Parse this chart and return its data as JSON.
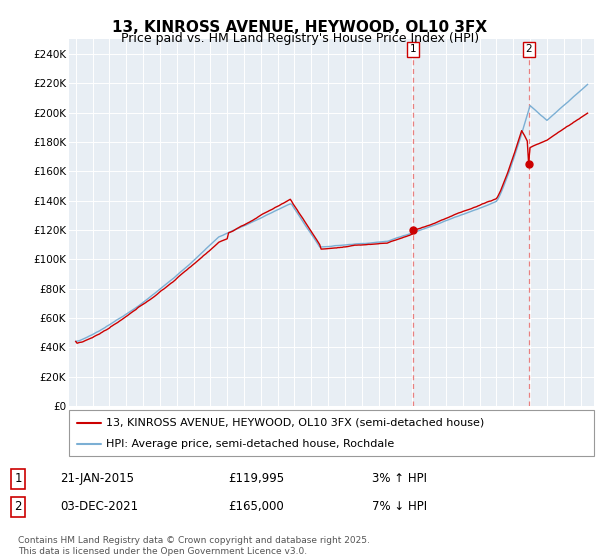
{
  "title": "13, KINROSS AVENUE, HEYWOOD, OL10 3FX",
  "subtitle": "Price paid vs. HM Land Registry's House Price Index (HPI)",
  "legend_line1": "13, KINROSS AVENUE, HEYWOOD, OL10 3FX (semi-detached house)",
  "legend_line2": "HPI: Average price, semi-detached house, Rochdale",
  "ann1_num": "1",
  "ann1_date": "21-JAN-2015",
  "ann1_price": "£119,995",
  "ann1_pct": "3% ↑ HPI",
  "ann1_year": 2015.05,
  "ann1_value": 119995,
  "ann2_num": "2",
  "ann2_date": "03-DEC-2021",
  "ann2_price": "£165,000",
  "ann2_pct": "7% ↓ HPI",
  "ann2_year": 2021.92,
  "ann2_value": 165000,
  "footer": "Contains HM Land Registry data © Crown copyright and database right 2025.\nThis data is licensed under the Open Government Licence v3.0.",
  "hpi_color": "#7bafd4",
  "price_color": "#cc0000",
  "dot_color": "#cc0000",
  "vline_color": "#e88080",
  "plot_bg_color": "#e8eef4",
  "fig_bg_color": "#ffffff",
  "grid_color": "#ffffff",
  "ylim": [
    0,
    250000
  ],
  "xlim_min": 1994.6,
  "xlim_max": 2025.8,
  "yticks": [
    0,
    20000,
    40000,
    60000,
    80000,
    100000,
    120000,
    140000,
    160000,
    180000,
    200000,
    220000,
    240000
  ],
  "title_fontsize": 11,
  "subtitle_fontsize": 9,
  "tick_fontsize": 7.5,
  "legend_fontsize": 8,
  "ann_fontsize": 8.5
}
